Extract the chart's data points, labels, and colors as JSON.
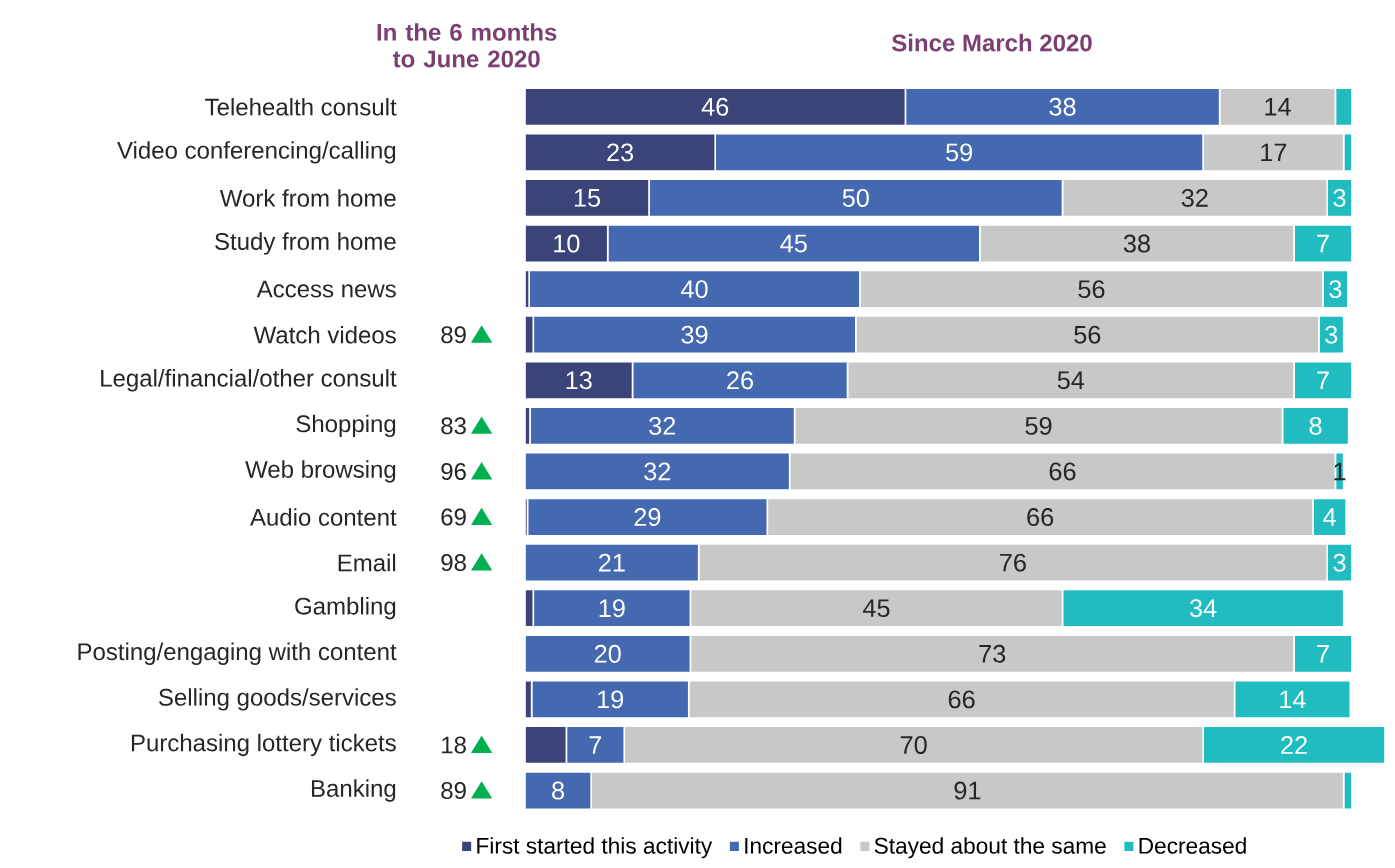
{
  "chart_data": [
    {
      "type": "bar",
      "orientation": "horizontal",
      "stacked": true,
      "title": "Since March 2020",
      "categories": [
        "Telehealth consult",
        "Video conferencing/calling",
        "Work from home",
        "Study from home",
        "Access news",
        "Watch videos",
        "Legal/financial/other consult",
        "Shopping",
        "Web browsing",
        "Audio content",
        "Email",
        "Gambling",
        "Posting/engaging with content",
        "Selling goods/services",
        "Purchasing lottery tickets",
        "Banking"
      ],
      "series": [
        {
          "name": "First started this activity",
          "color": "#3b4479",
          "values": [
            46,
            23,
            15,
            10,
            0.5,
            1,
            13,
            0.6,
            0,
            0.3,
            0,
            1,
            0,
            0.8,
            5,
            0
          ],
          "value_labels": [
            "46",
            "23",
            "15",
            "10",
            null,
            null,
            "13",
            null,
            null,
            null,
            null,
            null,
            null,
            null,
            null,
            null
          ]
        },
        {
          "name": "Increased",
          "color": "#4469b1",
          "values": [
            38,
            59,
            50,
            45,
            40,
            39,
            26,
            32,
            32,
            29,
            21,
            19,
            20,
            19,
            7,
            8
          ],
          "value_labels": [
            "38",
            "59",
            "50",
            "45",
            "40",
            "39",
            "26",
            "32",
            "32",
            "29",
            "21",
            "19",
            "20",
            "19",
            "7",
            "8"
          ]
        },
        {
          "name": "Stayed about the same",
          "color": "#c8c8c8",
          "values": [
            14,
            17,
            32,
            38,
            56,
            56,
            54,
            59,
            66,
            66,
            76,
            45,
            73,
            66,
            70,
            91
          ],
          "value_labels": [
            "14",
            "17",
            "32",
            "38",
            "56",
            "56",
            "54",
            "59",
            "66",
            "66",
            "76",
            "45",
            "73",
            "66",
            "70",
            "91"
          ]
        },
        {
          "name": "Decreased",
          "color": "#20bcc0",
          "values": [
            2,
            1,
            3,
            7,
            3,
            3,
            7,
            8,
            1,
            4,
            3,
            34,
            7,
            14,
            22,
            1
          ],
          "value_labels": [
            null,
            null,
            "3",
            "7",
            "3",
            "3",
            "7",
            "8",
            "1",
            "4",
            "3",
            "34",
            "7",
            "14",
            "22",
            null
          ]
        }
      ],
      "legend": "bottom"
    },
    {
      "type": "other",
      "title": "In the 6 months to June 2020",
      "values": [
        null,
        null,
        null,
        null,
        null,
        89,
        null,
        83,
        96,
        69,
        98,
        null,
        null,
        null,
        18,
        89
      ],
      "data_labels": true,
      "color": "#00b050"
    }
  ]
}
